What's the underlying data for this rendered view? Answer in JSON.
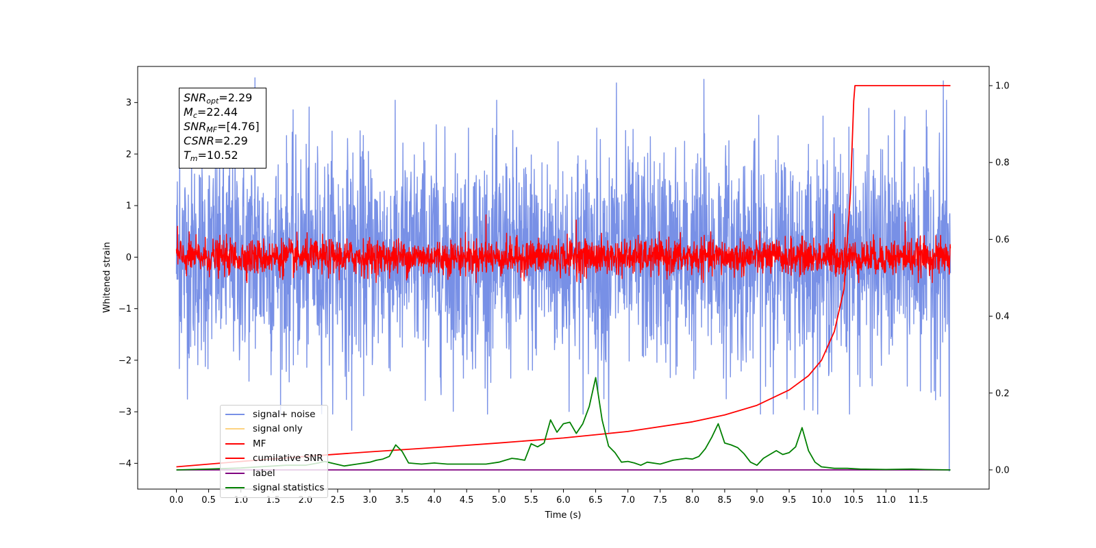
{
  "chart_data": {
    "type": "line",
    "xlabel": "Time (s)",
    "ylabel": "Whitened strain",
    "ylim": [
      -4.5,
      3.7
    ],
    "ylim_right": [
      -0.05,
      1.05
    ],
    "xlim": [
      -0.6,
      12.6
    ],
    "x_ticks": [
      "0.0",
      "0.5",
      "1.0",
      "1.5",
      "2.0",
      "2.5",
      "3.0",
      "3.5",
      "4.0",
      "4.5",
      "5.0",
      "5.5",
      "6.0",
      "6.5",
      "7.0",
      "7.5",
      "8.0",
      "8.5",
      "9.0",
      "9.5",
      "10.0",
      "10.5",
      "11.0",
      "11.5"
    ],
    "y_ticks_left": [
      "3",
      "2",
      "1",
      "0",
      "−1",
      "−2",
      "−3",
      "−4"
    ],
    "y_ticks_right": [
      "1.0",
      "0.8",
      "0.6",
      "0.4",
      "0.2",
      "0.0"
    ],
    "grid": false,
    "legend_position": "lower-left",
    "stats_box": {
      "snr_opt": {
        "symbol": "SNR",
        "sub": "opt",
        "value": "=2.29"
      },
      "mc": {
        "symbol": "M",
        "sub": "c",
        "value": "=22.44"
      },
      "snr_mf": {
        "symbol": "SNR",
        "sub": "MF",
        "value": "=[4.76]"
      },
      "csnr": {
        "symbol": "CSNR",
        "sub": "",
        "value": "=2.29"
      },
      "tm": {
        "symbol": "T",
        "sub": "m",
        "value": "=10.52"
      }
    },
    "series": [
      {
        "name": "signal+ noise",
        "color": "#7890e6",
        "axis": "left",
        "style": "noise",
        "x_range": [
          0.0,
          12.0
        ],
        "mean": 0.0,
        "std": 1.05,
        "peak_values": [
          2.82,
          3.48,
          3.38,
          3.45,
          3.42,
          -3.36,
          -3.4,
          -4.15
        ],
        "peak_times": [
          0.05,
          1.22,
          6.82,
          8.18,
          11.89,
          2.72,
          6.7,
          11.98
        ]
      },
      {
        "name": "signal only",
        "color": "#fdd280",
        "axis": "left",
        "style": "hidden",
        "values": []
      },
      {
        "name": "MF",
        "color": "#ff0000",
        "axis": "left",
        "style": "noise",
        "x_range": [
          0.0,
          12.0
        ],
        "mean": 0.0,
        "std": 0.17,
        "peak_values": [
          0.6,
          0.82,
          0.72,
          0.84,
          0.68
        ],
        "peak_times": [
          0.02,
          4.8,
          6.2,
          10.2,
          11.3
        ]
      },
      {
        "name": "cumilative SNR",
        "color": "#ff0000",
        "axis": "right",
        "style": "line",
        "x": [
          0.0,
          1.0,
          2.0,
          3.0,
          4.0,
          5.0,
          6.0,
          7.0,
          8.0,
          8.5,
          9.0,
          9.5,
          9.8,
          10.0,
          10.2,
          10.35,
          10.45,
          10.5,
          10.52,
          12.0
        ],
        "values": [
          0.008,
          0.022,
          0.035,
          0.047,
          0.058,
          0.07,
          0.083,
          0.1,
          0.125,
          0.143,
          0.168,
          0.208,
          0.245,
          0.285,
          0.36,
          0.47,
          0.72,
          0.96,
          1.0,
          1.0
        ]
      },
      {
        "name": "label",
        "color": "#800080",
        "axis": "right",
        "style": "line",
        "x": [
          0.0,
          12.0
        ],
        "values": [
          0.0,
          0.0
        ]
      },
      {
        "name": "signal statistics",
        "color": "#008000",
        "axis": "right",
        "style": "line",
        "x": [
          0.0,
          0.5,
          1.0,
          1.5,
          1.7,
          2.0,
          2.2,
          2.3,
          2.4,
          2.6,
          2.8,
          3.0,
          3.1,
          3.2,
          3.3,
          3.4,
          3.5,
          3.6,
          3.8,
          4.0,
          4.2,
          4.5,
          4.8,
          5.0,
          5.1,
          5.2,
          5.3,
          5.4,
          5.5,
          5.6,
          5.7,
          5.8,
          5.9,
          6.0,
          6.1,
          6.2,
          6.3,
          6.4,
          6.5,
          6.6,
          6.7,
          6.8,
          6.9,
          7.0,
          7.1,
          7.2,
          7.3,
          7.5,
          7.7,
          7.9,
          8.0,
          8.1,
          8.2,
          8.3,
          8.4,
          8.5,
          8.6,
          8.7,
          8.8,
          8.9,
          9.0,
          9.1,
          9.2,
          9.3,
          9.4,
          9.5,
          9.6,
          9.7,
          9.8,
          9.9,
          10.0,
          10.2,
          10.4,
          10.6,
          11.0,
          11.4,
          11.6,
          12.0
        ],
        "values": [
          0.0,
          0.002,
          0.005,
          0.01,
          0.012,
          0.012,
          0.018,
          0.022,
          0.018,
          0.01,
          0.015,
          0.02,
          0.025,
          0.028,
          0.035,
          0.065,
          0.048,
          0.018,
          0.015,
          0.018,
          0.015,
          0.015,
          0.015,
          0.02,
          0.025,
          0.03,
          0.028,
          0.025,
          0.068,
          0.06,
          0.07,
          0.13,
          0.098,
          0.12,
          0.124,
          0.095,
          0.12,
          0.165,
          0.24,
          0.13,
          0.062,
          0.045,
          0.02,
          0.022,
          0.018,
          0.012,
          0.02,
          0.015,
          0.025,
          0.03,
          0.028,
          0.035,
          0.055,
          0.085,
          0.12,
          0.07,
          0.065,
          0.058,
          0.042,
          0.02,
          0.012,
          0.03,
          0.04,
          0.05,
          0.04,
          0.045,
          0.06,
          0.11,
          0.05,
          0.02,
          0.008,
          0.004,
          0.004,
          0.002,
          0.001,
          0.002,
          0.001,
          0.0
        ]
      }
    ]
  }
}
